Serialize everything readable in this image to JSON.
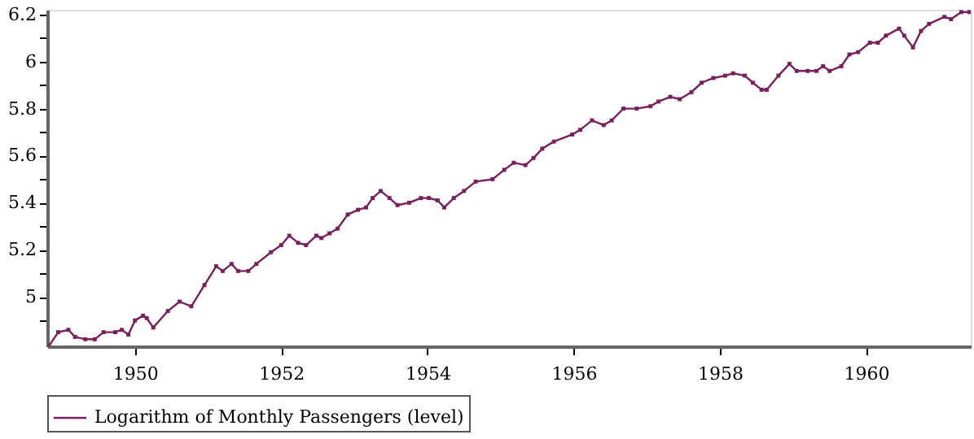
{
  "chart_data": {
    "type": "line",
    "legend": "bottom",
    "marker": "square",
    "line_style": "solid",
    "grid": false,
    "xlim": [
      1948.8,
      1961.43
    ],
    "ylim": [
      4.79,
      6.22
    ],
    "xticks": [
      1950,
      1952,
      1954,
      1956,
      1958,
      1960
    ],
    "yticks": [
      {
        "value": 4.9,
        "label": null
      },
      5,
      {
        "value": 5.1,
        "label": null
      },
      5.2,
      {
        "value": 5.3,
        "label": null
      },
      5.4,
      {
        "value": 5.5,
        "label": null
      },
      5.6,
      {
        "value": 5.7,
        "label": null
      },
      5.8,
      {
        "value": 5.9,
        "label": null
      },
      6,
      {
        "value": 6.1,
        "label": null
      },
      6.2
    ],
    "x": [
      1948.82,
      1948.95,
      1949.09,
      1949.18,
      1949.32,
      1949.45,
      1949.57,
      1949.73,
      1949.82,
      1949.91,
      1950.0,
      1950.11,
      1950.16,
      1950.25,
      1950.45,
      1950.61,
      1950.77,
      1950.95,
      1951.11,
      1951.2,
      1951.32,
      1951.41,
      1951.55,
      1951.66,
      1951.86,
      1952.0,
      1952.11,
      1952.23,
      1952.34,
      1952.48,
      1952.55,
      1952.66,
      1952.77,
      1952.91,
      1953.05,
      1953.16,
      1953.25,
      1953.36,
      1953.48,
      1953.59,
      1953.75,
      1953.91,
      1954.02,
      1954.14,
      1954.23,
      1954.36,
      1954.5,
      1954.66,
      1954.89,
      1955.05,
      1955.18,
      1955.34,
      1955.45,
      1955.57,
      1955.73,
      1955.98,
      1956.09,
      1956.25,
      1956.41,
      1956.52,
      1956.68,
      1956.86,
      1957.05,
      1957.16,
      1957.32,
      1957.45,
      1957.61,
      1957.75,
      1957.91,
      1958.07,
      1958.18,
      1958.34,
      1958.45,
      1958.57,
      1958.64,
      1958.8,
      1958.95,
      1959.05,
      1959.2,
      1959.32,
      1959.41,
      1959.5,
      1959.66,
      1959.77,
      1959.89,
      1960.05,
      1960.16,
      1960.27,
      1960.45,
      1960.52,
      1960.64,
      1960.75,
      1960.86,
      1961.07,
      1961.16,
      1961.3,
      1961.41
    ],
    "series": [
      {
        "name": "Logarithm of Monthly Passengers (level)",
        "color": "#7a1f5c",
        "values": [
          4.79,
          4.85,
          4.86,
          4.83,
          4.82,
          4.82,
          4.85,
          4.85,
          4.86,
          4.84,
          4.9,
          4.92,
          4.91,
          4.87,
          4.94,
          4.98,
          4.96,
          5.05,
          5.13,
          5.11,
          5.14,
          5.11,
          5.11,
          5.14,
          5.19,
          5.22,
          5.26,
          5.23,
          5.22,
          5.26,
          5.25,
          5.27,
          5.29,
          5.35,
          5.37,
          5.38,
          5.42,
          5.45,
          5.42,
          5.39,
          5.4,
          5.42,
          5.42,
          5.41,
          5.38,
          5.42,
          5.45,
          5.49,
          5.5,
          5.54,
          5.57,
          5.56,
          5.59,
          5.63,
          5.66,
          5.69,
          5.71,
          5.75,
          5.73,
          5.75,
          5.8,
          5.8,
          5.81,
          5.83,
          5.85,
          5.84,
          5.87,
          5.91,
          5.93,
          5.94,
          5.95,
          5.94,
          5.91,
          5.88,
          5.88,
          5.94,
          5.99,
          5.96,
          5.96,
          5.96,
          5.98,
          5.96,
          5.98,
          6.03,
          6.04,
          6.08,
          6.08,
          6.11,
          6.14,
          6.11,
          6.06,
          6.13,
          6.16,
          6.19,
          6.18,
          6.21,
          6.21
        ]
      }
    ]
  }
}
